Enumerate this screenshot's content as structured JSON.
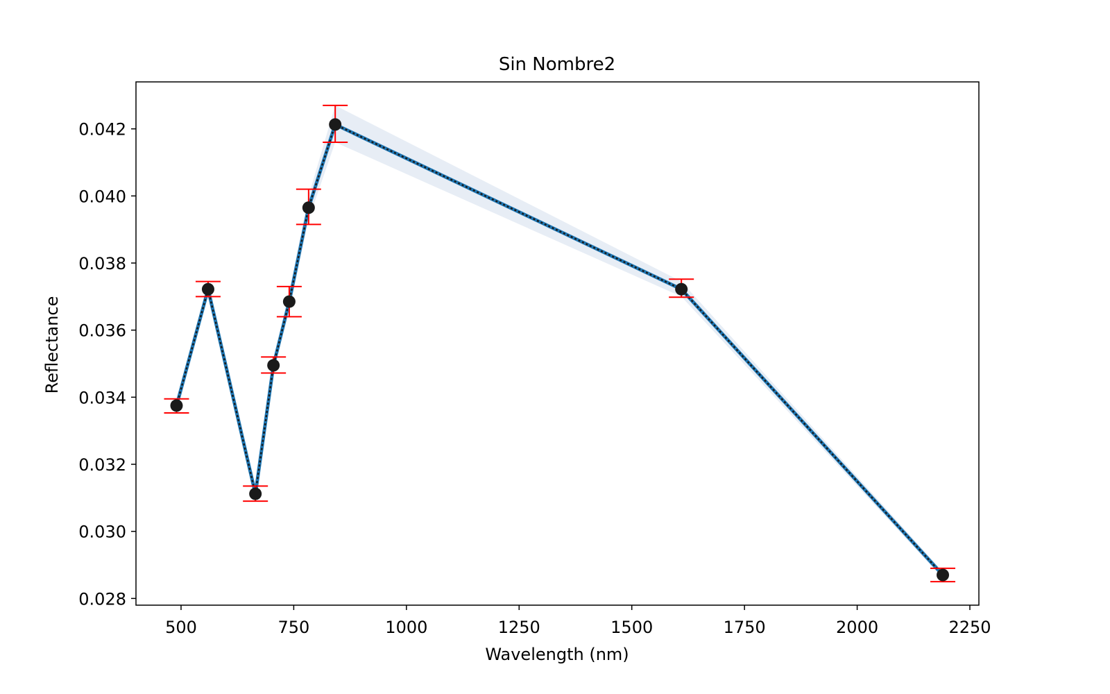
{
  "chart_data": {
    "type": "line",
    "title": "Sin Nombre2",
    "xlabel": "Wavelength (nm)",
    "ylabel": "Reflectance",
    "xlim": [
      400,
      2270
    ],
    "ylim": [
      0.0278,
      0.0434
    ],
    "xticks": [
      500,
      750,
      1000,
      1250,
      1500,
      1750,
      2000,
      2250
    ],
    "xtick_labels": [
      "500",
      "750",
      "1000",
      "1250",
      "1500",
      "1750",
      "2000",
      "2250"
    ],
    "yticks": [
      0.028,
      0.03,
      0.032,
      0.034,
      0.036,
      0.038,
      0.04,
      0.042
    ],
    "ytick_labels": [
      "0.028",
      "0.030",
      "0.032",
      "0.034",
      "0.036",
      "0.038",
      "0.040",
      "0.042"
    ],
    "grid": false,
    "legend": "none",
    "series": [
      {
        "x": [
          490,
          560,
          665,
          705,
          740,
          783,
          842,
          1610,
          2190
        ],
        "y": [
          0.03375,
          0.03722,
          0.03112,
          0.03495,
          0.03685,
          0.03965,
          0.04213,
          0.03722,
          0.0287
        ],
        "err_low": [
          0.03353,
          0.037,
          0.0309,
          0.03472,
          0.0364,
          0.03915,
          0.0416,
          0.03698,
          0.0285
        ],
        "err_high": [
          0.03395,
          0.03745,
          0.03135,
          0.0352,
          0.0373,
          0.0402,
          0.0427,
          0.03752,
          0.0289
        ],
        "band_low": [
          0.03368,
          0.03712,
          0.03105,
          0.0348,
          0.03655,
          0.0393,
          0.0416,
          0.037,
          0.0286
        ],
        "band_high": [
          0.03382,
          0.03732,
          0.03119,
          0.0351,
          0.03715,
          0.04,
          0.0427,
          0.03745,
          0.0288
        ]
      }
    ],
    "colors": {
      "line": "#1f77b4",
      "line_overlay": "#1a1a1a",
      "marker": "#1a1a1a",
      "errorbar": "#ff0000",
      "band": "#b0c4de"
    }
  }
}
